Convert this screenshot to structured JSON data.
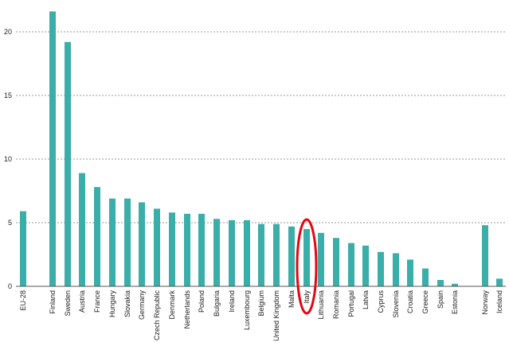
{
  "chart_data": {
    "type": "bar",
    "categories": [
      "EU-28",
      "Finland",
      "Sweden",
      "Austria",
      "France",
      "Hungary",
      "Slovakia",
      "Germany",
      "Czech Republic",
      "Denmark",
      "Netherlands",
      "Poland",
      "Bulgaria",
      "Ireland",
      "Luxembourg",
      "Belgium",
      "United Kingdom",
      "Malta",
      "Italy",
      "Lithuania",
      "Romania",
      "Portugal",
      "Latvia",
      "Cyprus",
      "Slovenia",
      "Croatia",
      "Greece",
      "Spain",
      "Estonia",
      "Norway",
      "Iceland"
    ],
    "values": [
      5.9,
      21.6,
      19.2,
      8.9,
      7.8,
      6.9,
      6.9,
      6.6,
      6.1,
      5.8,
      5.7,
      5.7,
      5.3,
      5.2,
      5.2,
      4.9,
      4.9,
      4.7,
      4.5,
      4.2,
      3.8,
      3.4,
      3.2,
      2.7,
      2.6,
      2.1,
      1.4,
      0.5,
      0.2,
      4.8,
      0.6
    ],
    "ylim": [
      0,
      22
    ],
    "yticks": [
      0,
      5,
      10,
      15,
      20
    ],
    "grid": true,
    "bar_color": "#3aaea8",
    "highlight": {
      "category": "Italy",
      "color": "#e30613"
    },
    "title": "",
    "xlabel": "",
    "ylabel": ""
  }
}
